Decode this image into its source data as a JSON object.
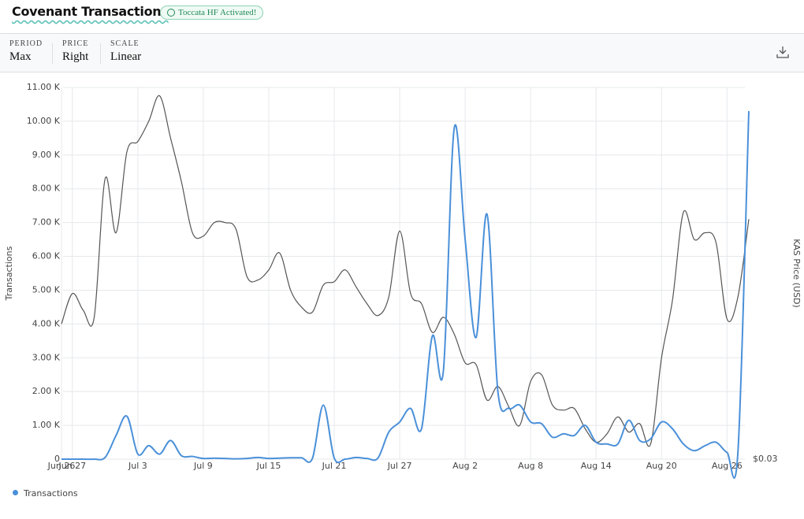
{
  "header": {
    "title": "Covenant Transactions",
    "badge": "Toccata HF Activated!"
  },
  "controls": [
    {
      "label": "PERIOD",
      "value": "Max"
    },
    {
      "label": "PRICE",
      "value": "Right"
    },
    {
      "label": "SCALE",
      "value": "Linear"
    }
  ],
  "chart_data": {
    "type": "line",
    "ylabel": "Transactions",
    "y2label": "KAS Price (USD)",
    "categories": [
      "Jun 26",
      "Jun 27",
      null,
      null,
      null,
      null,
      null,
      "Jul 3",
      null,
      null,
      null,
      null,
      null,
      "Jul 9",
      null,
      null,
      null,
      null,
      null,
      "Jul 15",
      null,
      null,
      null,
      null,
      null,
      "Jul 21",
      null,
      null,
      null,
      null,
      null,
      "Jul 27",
      null,
      null,
      null,
      null,
      null,
      "Aug 2",
      null,
      null,
      null,
      null,
      null,
      "Aug 8",
      null,
      null,
      null,
      null,
      null,
      "Aug 14",
      null,
      null,
      null,
      null,
      null,
      "Aug 20",
      null,
      null,
      null,
      null,
      null,
      "Aug 26",
      null,
      null
    ],
    "series": [
      {
        "name": "Transactions",
        "color": "#4a90d9",
        "values": [
          0,
          0,
          0,
          0,
          50,
          700,
          1270,
          150,
          400,
          150,
          550,
          100,
          80,
          20,
          30,
          20,
          10,
          20,
          50,
          20,
          30,
          40,
          40,
          20,
          1600,
          30,
          0,
          50,
          20,
          30,
          800,
          1100,
          1500,
          900,
          3650,
          2600,
          9800,
          6500,
          3600,
          7250,
          2000,
          1500,
          1600,
          1100,
          1050,
          650,
          750,
          700,
          1000,
          500,
          450,
          450,
          1150,
          550,
          600,
          1100,
          900,
          450,
          250,
          400,
          500,
          200,
          200,
          10300
        ]
      },
      {
        "color": "#555555",
        "axis": "y2",
        "values": [
          0.07,
          0.079,
          0.074,
          0.072,
          0.113,
          0.097,
          0.121,
          0.124,
          0.13,
          0.1375,
          0.125,
          0.112,
          0.097,
          0.096,
          0.1,
          0.1,
          0.098,
          0.084,
          0.083,
          0.086,
          0.091,
          0.08,
          0.075,
          0.0735,
          0.0815,
          0.0825,
          0.086,
          0.081,
          0.076,
          0.0725,
          0.078,
          0.0975,
          0.079,
          0.076,
          0.0675,
          0.072,
          0.067,
          0.0585,
          0.058,
          0.0475,
          0.0515,
          0.0455,
          0.04,
          0.053,
          0.055,
          0.046,
          0.0445,
          0.045,
          0.039,
          0.035,
          0.0375,
          0.0425,
          0.038,
          0.0405,
          0.0345,
          0.06,
          0.077,
          0.103,
          0.095,
          0.097,
          0.094,
          0.0715,
          0.078,
          0.101
        ]
      }
    ],
    "ylim": [
      0,
      11000
    ],
    "yticks": [
      {
        "value": 0,
        "label": "0"
      },
      {
        "value": 1000,
        "label": "1.00 K"
      },
      {
        "value": 2000,
        "label": "2.00 K"
      },
      {
        "value": 3000,
        "label": "3.00 K"
      },
      {
        "value": 4000,
        "label": "4.00 K"
      },
      {
        "value": 5000,
        "label": "5.00 K"
      },
      {
        "value": 6000,
        "label": "6.00 K"
      },
      {
        "value": 7000,
        "label": "7.00 K"
      },
      {
        "value": 8000,
        "label": "8.00 K"
      },
      {
        "value": 9000,
        "label": "9.00 K"
      },
      {
        "value": 10000,
        "label": "10.00 K"
      },
      {
        "value": 11000,
        "label": "11.00 K"
      }
    ],
    "y2lim": [
      0.03,
      0.14
    ],
    "y2ticks": [
      {
        "value": 0.03,
        "label": "$0.03"
      }
    ],
    "grid": true,
    "legend": "bottom-left"
  }
}
